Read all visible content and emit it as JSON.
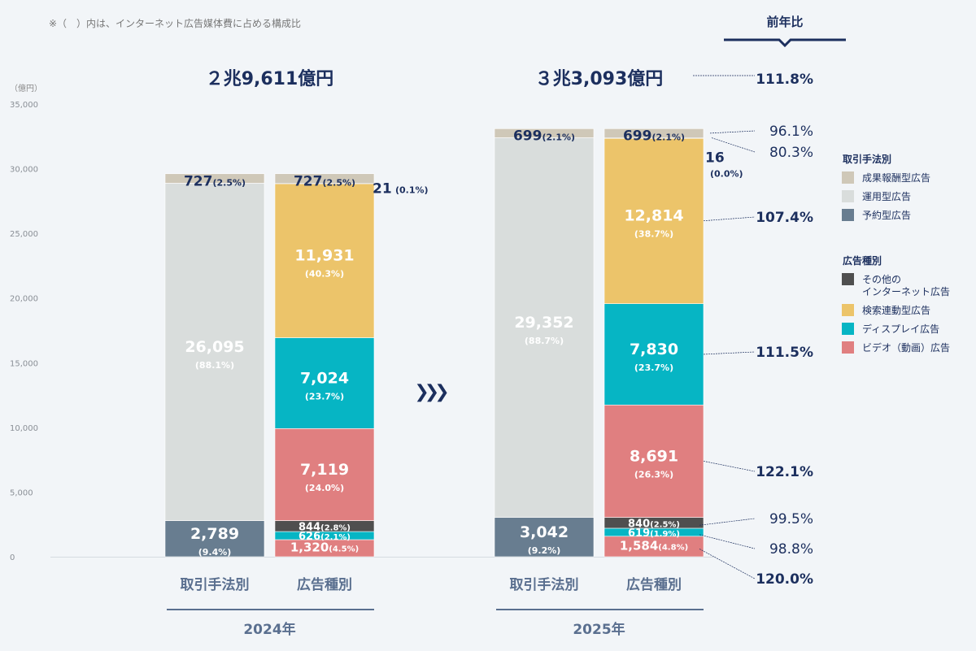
{
  "note": "※（　）内は、インターネット広告媒体費に占める構成比",
  "yoy_header": "前年比",
  "chart_data": {
    "type": "bar",
    "stacked": true,
    "ylabel": "（億円）",
    "ylim": [
      0,
      35000
    ],
    "yticks": [
      "0",
      "5,000",
      "10,000",
      "15,000",
      "20,000",
      "25,000",
      "30,000",
      "35,000"
    ],
    "ytick_values": [
      0,
      5000,
      10000,
      15000,
      20000,
      25000,
      30000,
      35000
    ],
    "grid": false,
    "legend_position": "right",
    "groups": [
      {
        "year": "2024年",
        "total_label": "２兆9,611億円",
        "bars": [
          {
            "label": "取引手法別",
            "segments": [
              {
                "key": "reserved",
                "value": 2789,
                "text": "2,789",
                "pct": "(9.4%)"
              },
              {
                "key": "operational",
                "value": 26095,
                "text": "26,095",
                "pct": "(88.1%)"
              },
              {
                "key": "performance",
                "value": 727,
                "text": "727",
                "pct": "(2.5%)"
              }
            ]
          },
          {
            "label": "広告種別",
            "segments": [
              {
                "key": "video",
                "value": 1320,
                "text": "1,320",
                "pct": "(4.5%)"
              },
              {
                "key": "display",
                "value": 626,
                "text": "626",
                "pct": "(2.1%)"
              },
              {
                "key": "other",
                "value": 844,
                "text": "844",
                "pct": "(2.8%)"
              },
              {
                "key": "video",
                "value": 7119,
                "text": "7,119",
                "pct": "(24.0%)"
              },
              {
                "key": "display",
                "value": 7024,
                "text": "7,024",
                "pct": "(23.7%)"
              },
              {
                "key": "search",
                "value": 11931,
                "text": "11,931",
                "pct": "(40.3%)"
              },
              {
                "key": "other",
                "value": 21,
                "text": "21",
                "pct": "(0.1%)"
              },
              {
                "key": "performance",
                "value": 727,
                "text": "727",
                "pct": "(2.5%)"
              }
            ]
          }
        ]
      },
      {
        "year": "2025年",
        "total_label": "３兆3,093億円",
        "bars": [
          {
            "label": "取引手法別",
            "segments": [
              {
                "key": "reserved",
                "value": 3042,
                "text": "3,042",
                "pct": "(9.2%)"
              },
              {
                "key": "operational",
                "value": 29352,
                "text": "29,352",
                "pct": "(88.7%)"
              },
              {
                "key": "performance",
                "value": 699,
                "text": "699",
                "pct": "(2.1%)"
              }
            ]
          },
          {
            "label": "広告種別",
            "segments": [
              {
                "key": "video",
                "value": 1584,
                "text": "1,584",
                "pct": "(4.8%)",
                "yoy": "120.0%",
                "bold": true
              },
              {
                "key": "display",
                "value": 619,
                "text": "619",
                "pct": "(1.9%)",
                "yoy": "98.8%"
              },
              {
                "key": "other",
                "value": 840,
                "text": "840",
                "pct": "(2.5%)",
                "yoy": "99.5%"
              },
              {
                "key": "video",
                "value": 8691,
                "text": "8,691",
                "pct": "(26.3%)",
                "yoy": "122.1%",
                "bold": true
              },
              {
                "key": "display",
                "value": 7830,
                "text": "7,830",
                "pct": "(23.7%)",
                "yoy": "111.5%",
                "bold": true
              },
              {
                "key": "search",
                "value": 12814,
                "text": "12,814",
                "pct": "(38.7%)",
                "yoy": "107.4%",
                "bold": true
              },
              {
                "key": "other",
                "value": 16,
                "text": "16",
                "pct": "(0.0%)",
                "yoy": "80.3%"
              },
              {
                "key": "performance",
                "value": 699,
                "text": "699",
                "pct": "(2.1%)",
                "yoy": "96.1%"
              }
            ]
          }
        ]
      }
    ],
    "total_yoy": "111.8%",
    "legend": [
      {
        "title": "取引手法別",
        "items": [
          {
            "key": "performance",
            "label": "成果報酬型広告"
          },
          {
            "key": "operational",
            "label": "運用型広告"
          },
          {
            "key": "reserved",
            "label": "予約型広告"
          }
        ]
      },
      {
        "title": "広告種別",
        "items": [
          {
            "key": "other",
            "label": "その他の\nインターネット広告"
          },
          {
            "key": "search",
            "label": "検索連動型広告"
          },
          {
            "key": "display",
            "label": "ディスプレイ広告"
          },
          {
            "key": "video",
            "label": "ビデオ（動画）広告"
          }
        ]
      }
    ],
    "colors": {
      "performance": "#cfc8b8",
      "operational": "#d9dddc",
      "reserved": "#687d90",
      "other": "#4f4f4f",
      "search": "#ecc46a",
      "display": "#06b5c4",
      "video": "#e07f80",
      "navy": "#1c2f5e",
      "axis": "#5a6f8f"
    }
  }
}
